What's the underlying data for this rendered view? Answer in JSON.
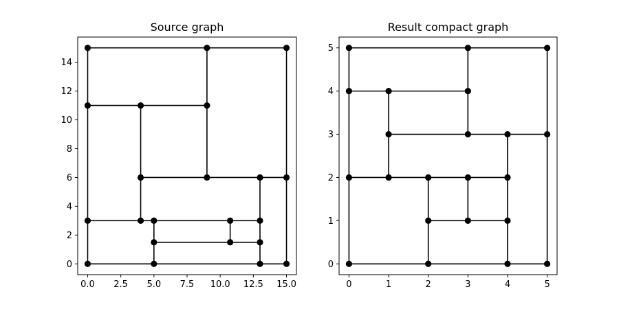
{
  "chart_data": [
    {
      "type": "scatter",
      "subtype": "graph",
      "title": "Source graph",
      "xlim": [
        -0.75,
        15.75
      ],
      "ylim": [
        -0.75,
        15.75
      ],
      "xticks": [
        0,
        2.5,
        5,
        7.5,
        10,
        12.5,
        15
      ],
      "xtick_labels": [
        "0.0",
        "2.5",
        "5.0",
        "7.5",
        "10.0",
        "12.5",
        "15.0"
      ],
      "yticks": [
        0,
        2,
        4,
        6,
        8,
        10,
        12,
        14
      ],
      "ytick_labels": [
        "0",
        "2",
        "4",
        "6",
        "8",
        "10",
        "12",
        "14"
      ],
      "grid": false,
      "nodes": [
        [
          0,
          15
        ],
        [
          9,
          15
        ],
        [
          15,
          15
        ],
        [
          0,
          11
        ],
        [
          4,
          11
        ],
        [
          9,
          11
        ],
        [
          4,
          6
        ],
        [
          9,
          6
        ],
        [
          13,
          6
        ],
        [
          15,
          6
        ],
        [
          0,
          3
        ],
        [
          4,
          3
        ],
        [
          5,
          3
        ],
        [
          10.75,
          3
        ],
        [
          13,
          3
        ],
        [
          5,
          1.5
        ],
        [
          10.75,
          1.5
        ],
        [
          13,
          1.5
        ],
        [
          0,
          0
        ],
        [
          5,
          0
        ],
        [
          13,
          0
        ],
        [
          15,
          0
        ]
      ],
      "edges": [
        [
          [
            0,
            15
          ],
          [
            15,
            15
          ]
        ],
        [
          [
            0,
            11
          ],
          [
            9,
            11
          ]
        ],
        [
          [
            4,
            6
          ],
          [
            15,
            6
          ]
        ],
        [
          [
            0,
            3
          ],
          [
            13,
            3
          ]
        ],
        [
          [
            5,
            1.5
          ],
          [
            13,
            1.5
          ]
        ],
        [
          [
            0,
            0
          ],
          [
            15,
            0
          ]
        ],
        [
          [
            0,
            0
          ],
          [
            0,
            15
          ]
        ],
        [
          [
            4,
            3
          ],
          [
            4,
            11
          ]
        ],
        [
          [
            5,
            0
          ],
          [
            5,
            3
          ]
        ],
        [
          [
            9,
            6
          ],
          [
            9,
            15
          ]
        ],
        [
          [
            10.75,
            1.5
          ],
          [
            10.75,
            3
          ]
        ],
        [
          [
            13,
            0
          ],
          [
            13,
            6
          ]
        ],
        [
          [
            15,
            0
          ],
          [
            15,
            15
          ]
        ]
      ]
    },
    {
      "type": "scatter",
      "subtype": "graph",
      "title": "Result compact graph",
      "xlim": [
        -0.25,
        5.25
      ],
      "ylim": [
        -0.25,
        5.25
      ],
      "xticks": [
        0,
        1,
        2,
        3,
        4,
        5
      ],
      "xtick_labels": [
        "0",
        "1",
        "2",
        "3",
        "4",
        "5"
      ],
      "yticks": [
        0,
        1,
        2,
        3,
        4,
        5
      ],
      "ytick_labels": [
        "0",
        "1",
        "2",
        "3",
        "4",
        "5"
      ],
      "grid": false,
      "nodes": [
        [
          0,
          5
        ],
        [
          3,
          5
        ],
        [
          5,
          5
        ],
        [
          0,
          4
        ],
        [
          1,
          4
        ],
        [
          3,
          4
        ],
        [
          1,
          3
        ],
        [
          3,
          3
        ],
        [
          4,
          3
        ],
        [
          5,
          3
        ],
        [
          0,
          2
        ],
        [
          1,
          2
        ],
        [
          2,
          2
        ],
        [
          3,
          2
        ],
        [
          4,
          2
        ],
        [
          2,
          1
        ],
        [
          3,
          1
        ],
        [
          4,
          1
        ],
        [
          0,
          0
        ],
        [
          2,
          0
        ],
        [
          4,
          0
        ],
        [
          5,
          0
        ]
      ],
      "edges": [
        [
          [
            0,
            5
          ],
          [
            5,
            5
          ]
        ],
        [
          [
            0,
            4
          ],
          [
            3,
            4
          ]
        ],
        [
          [
            1,
            3
          ],
          [
            5,
            3
          ]
        ],
        [
          [
            0,
            2
          ],
          [
            4,
            2
          ]
        ],
        [
          [
            2,
            1
          ],
          [
            4,
            1
          ]
        ],
        [
          [
            0,
            0
          ],
          [
            5,
            0
          ]
        ],
        [
          [
            0,
            0
          ],
          [
            0,
            5
          ]
        ],
        [
          [
            1,
            2
          ],
          [
            1,
            4
          ]
        ],
        [
          [
            2,
            0
          ],
          [
            2,
            2
          ]
        ],
        [
          [
            3,
            3
          ],
          [
            3,
            5
          ]
        ],
        [
          [
            3,
            1
          ],
          [
            3,
            2
          ]
        ],
        [
          [
            4,
            0
          ],
          [
            4,
            3
          ]
        ],
        [
          [
            5,
            0
          ],
          [
            5,
            5
          ]
        ]
      ]
    }
  ]
}
